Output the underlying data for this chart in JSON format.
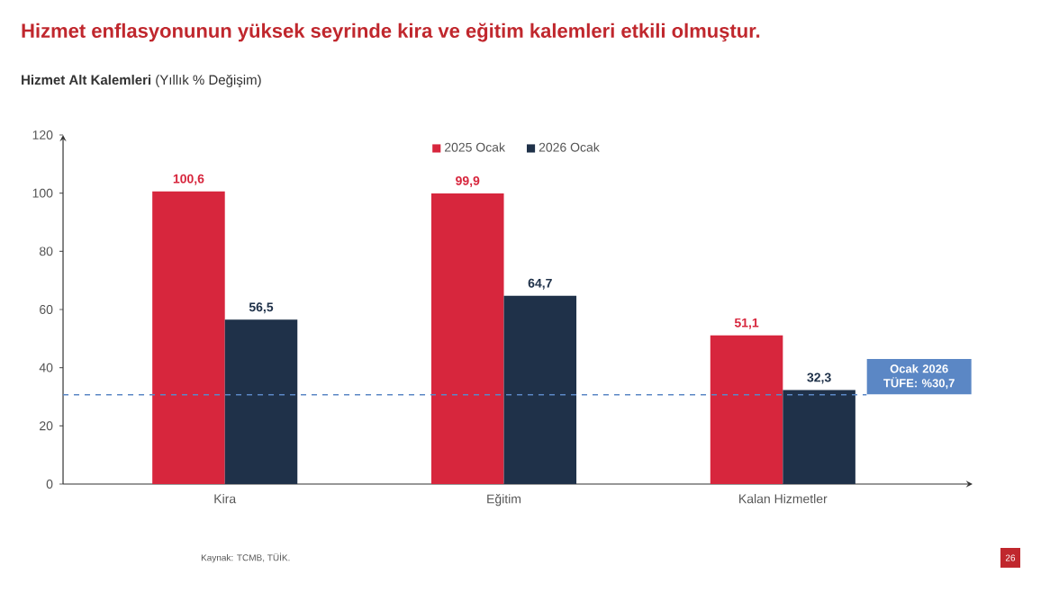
{
  "chart_data": {
    "type": "bar",
    "title": "Hizmet enflasyonunun yüksek seyrinde kira ve eğitim kalemleri etkili olmuştur.",
    "subtitle": "**Hizmet Alt Kalemleri** (Yıllık % Değişim)",
    "categories": [
      "Kira",
      "Eğitim",
      "Kalan Hizmetler"
    ],
    "series": [
      {
        "name": "2025 Ocak",
        "color": "#d7263d",
        "values": [
          100.6,
          99.9,
          51.1
        ],
        "value_labels": [
          "100,6",
          "99,9",
          "51,1"
        ]
      },
      {
        "name": "2026 Ocak",
        "color": "#1f3149",
        "values": [
          56.5,
          64.7,
          32.3
        ],
        "value_labels": [
          "56,5",
          "64,7",
          "32,3"
        ]
      }
    ],
    "ylim": [
      0,
      120
    ],
    "yticks": [
      0,
      20,
      40,
      60,
      80,
      100,
      120
    ],
    "legend": "top",
    "grid": false,
    "ref_lines": [
      {
        "axis": "y",
        "value": 30.7,
        "label": "Ocak 2026 TÜFE: %30,7",
        "color": "#5b87c5",
        "line_style": "dashed"
      }
    ],
    "annotations": [
      "Kaynak: TCMB, TÜİK.",
      "26"
    ]
  }
}
